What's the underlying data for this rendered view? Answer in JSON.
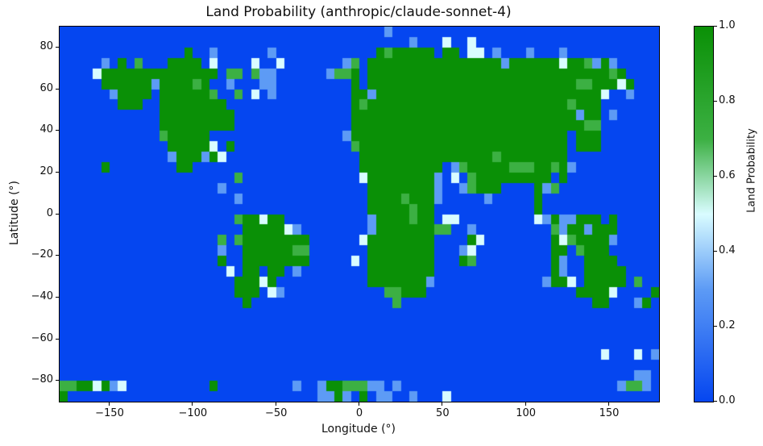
{
  "title": "Land Probability (anthropic/claude-sonnet-4)",
  "x_axis": {
    "label": "Longitude (°)",
    "ticks": [
      {
        "label": "−150",
        "value": -150
      },
      {
        "label": "−100",
        "value": -100
      },
      {
        "label": "−50",
        "value": -50
      },
      {
        "label": "0",
        "value": 0
      },
      {
        "label": "50",
        "value": 50
      },
      {
        "label": "100",
        "value": 100
      },
      {
        "label": "150",
        "value": 150
      }
    ]
  },
  "y_axis": {
    "label": "Latitude (°)",
    "ticks": [
      {
        "label": "80",
        "value": 80
      },
      {
        "label": "60",
        "value": 60
      },
      {
        "label": "40",
        "value": 40
      },
      {
        "label": "20",
        "value": 20
      },
      {
        "label": "0",
        "value": 0
      },
      {
        "label": "−20",
        "value": -20
      },
      {
        "label": "−40",
        "value": -40
      },
      {
        "label": "−60",
        "value": -60
      },
      {
        "label": "−80",
        "value": -80
      }
    ]
  },
  "colorbar": {
    "label": "Land Probability",
    "ticks": [
      {
        "label": "0.0",
        "value": 0.0
      },
      {
        "label": "0.2",
        "value": 0.2
      },
      {
        "label": "0.4",
        "value": 0.4
      },
      {
        "label": "0.6",
        "value": 0.6
      },
      {
        "label": "0.8",
        "value": 0.8
      },
      {
        "label": "1.0",
        "value": 1.0
      }
    ]
  },
  "chart_data": {
    "type": "heatmap",
    "title": "Land Probability (anthropic/claude-sonnet-4)",
    "xlabel": "Longitude (°)",
    "ylabel": "Latitude (°)",
    "x_range": [
      -180,
      180
    ],
    "y_range": [
      -90,
      90
    ],
    "cell_size_deg": 5,
    "grid_cols": 72,
    "grid_rows": 36,
    "first_row_is_north": true,
    "value_key": {
      ".": 0.0,
      "c": 0.3,
      "w": 0.5,
      "g": 0.7,
      "G": 1.0
    },
    "palette": {
      ".": "#0546f0",
      "c": "#5d9bf5",
      "w": "#d9fcff",
      "g": "#3cb043",
      "G": "#0a9006"
    },
    "colormap_stops": [
      {
        "value": 0.0,
        "color": "#0546f0"
      },
      {
        "value": 0.3,
        "color": "#5d9bf5"
      },
      {
        "value": 0.5,
        "color": "#d9fcff"
      },
      {
        "value": 0.7,
        "color": "#3cb043"
      },
      {
        "value": 1.0,
        "color": "#0a9006"
      }
    ],
    "rows": [
      ".......................................c................................",
      "..........................................c...w..w......................",
      "...............G..c......c............GgGGGGG.GG.ww.c...c...c...........",
      ".....c.G.g...GGGG.w....w..w.......cg.GGGGGGGGGGGGGGGGcGGGGGGwGGgcGc.....",
      "....wGGGGGGGGGGGGGG.gg.gcc......cggG.GGGGGGGGGGGGGGGGGGGGGGGGGGGGGgG....",
      ".....GGGGGGcGGGGgG..c...cc.........G.GGGGGGGGGGGGGGGGGGGGGGGGGggGGGwG...",
      "......cGGGG.GGGGGGg..g.w.c.........GGcGGGGGGGGGGGGGGGGGGGGGGGGGGGw..c...",
      ".......GGG..GGGGGGGG...............GgGGGGGGGGGGGGGGGGGGGGGGGGgGGG.......",
      "............GGGGGGGGG..............GGGGGGGGGGGGGGGGGGGGGGGGGGGcGG.c.....",
      "............GGGGGGGGG..............GGGGGGGGGGGGGGGGGGGGGGGGGGGGgg.......",
      "............gGGGGG................cGGGGGGGGGGGGGGGGGGGGGGGGGG.GGG.......",
      ".............GGGGGw.G..............gGGGGGGGGGGGGGGGGGGGGGGGGG.GGG.......",
      ".............cGGGcGw................GGGGGGGGGGGGGGGGgGGGGGGGG...........",
      ".....G........GG....................GGGGGGGGGG.cgGGGGGgggGGgGc..........",
      ".....................g..............wGGGGGGGGc.w.gGGGGGGGGG.G...........",
      "...................c.................GGGGGGGGc..cgGGG....Gcg............",
      ".....................c...............GGGGgGGGc.....c.....G..............",
      ".....................................GGGGGgGG............G..............",
      ".....................gGGwGG..........cGGGGgGG.ww.........wcGccGGG.G.....",
      "......................GGGGGwc........cGGGGGGGgg..c.........gcGGcGGG.....",
      "...................g.gGGGGGGGG......wGGGGGGGG....Gw........GwgGGGGc.....",
      "...................c..GGGGGGgg.......GGGGGGGG...cw.........GG.gGGG......",
      "...................G..GGGGGGGG.....w.GGGGGGGG...Gg.........Gc..GGGG.....",
      "....................w.GG.GG.c........GGGGGGGG..............Gc..GGGGG....",
      ".....................GGGwG...........GGGGGGGc.............cGGw.GGGGG.g..",
      ".....................GGG.wc............ggGGG..................GGGGw....G",
      "......................G.................g.......................GG...cG.",
      "........................................................................",
      "........................................................................",
      "........................................................................",
      "........................................................................",
      ".................................................................w...w.c",
      "........................................................................",
      ".....................................................................cc.",
      "ggGGwGcw..........G.........c..cGGgggcc.c..........................cggc.",
      "G..............................ccGc.G.cc..c...w........................."
    ]
  }
}
